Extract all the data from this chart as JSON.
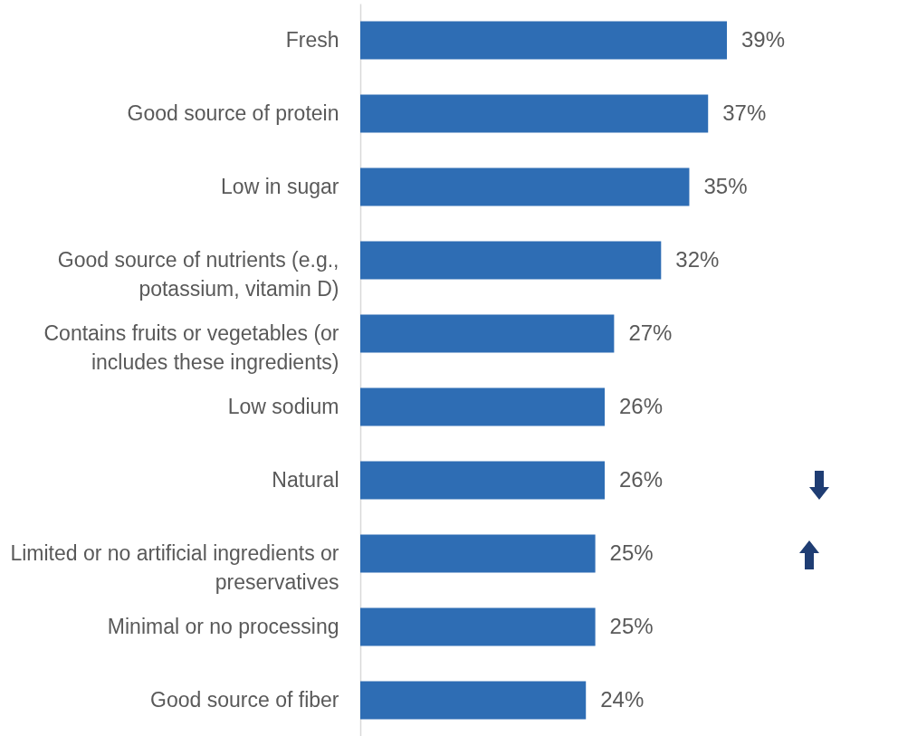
{
  "chart_data": {
    "type": "bar",
    "orientation": "horizontal",
    "categories": [
      "Fresh",
      "Good source of protein",
      "Low in sugar",
      "Good source of nutrients (e.g.,\npotassium, vitamin D)",
      "Contains fruits or vegetables (or\nincludes these ingredients)",
      "Low sodium",
      "Natural",
      "Limited or no artificial ingredients or\npreservatives",
      "Minimal or no processing",
      "Good source of fiber"
    ],
    "values": [
      39,
      37,
      35,
      32,
      27,
      26,
      26,
      25,
      25,
      24
    ],
    "value_labels": [
      "39%",
      "37%",
      "35%",
      "32%",
      "27%",
      "26%",
      "26%",
      "25%",
      "25%",
      "24%"
    ],
    "color": "#2e6db4"
  }
}
